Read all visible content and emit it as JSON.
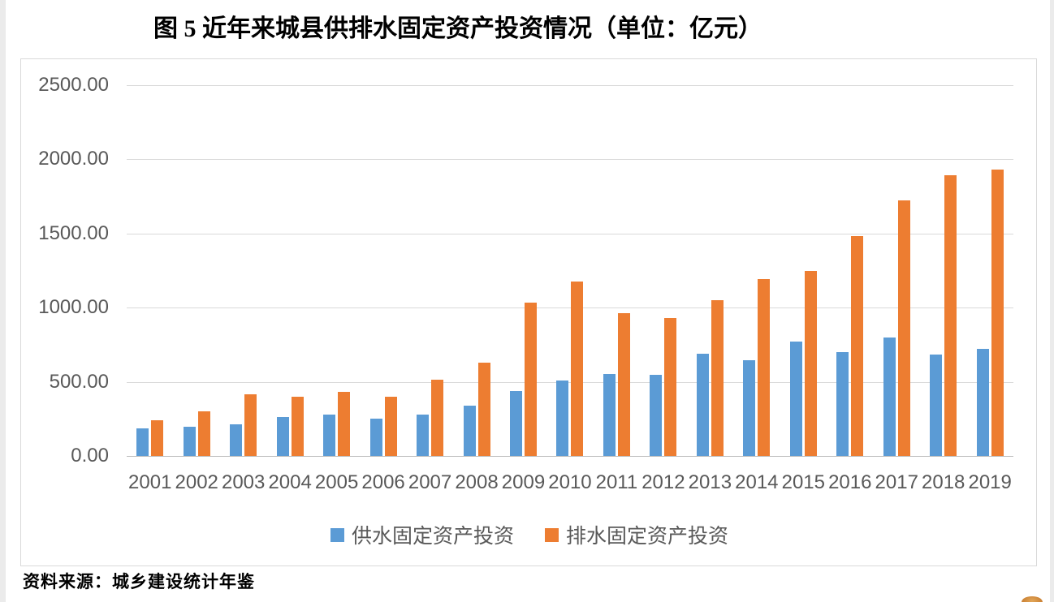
{
  "title": "图 5  近年来城县供排水固定资产投资情况（单位：亿元）",
  "source": "资料来源：城乡建设统计年鉴",
  "colors": {
    "water_supply": "#5B9BD5",
    "drainage": "#ED7D31",
    "gridline": "#D9D9D9",
    "axis_line": "#BFBFBF",
    "tick_text": "#595959",
    "chart_border": "#D9D9D9"
  },
  "chart_data": {
    "type": "bar",
    "title": "图 5  近年来城县供排水固定资产投资情况（单位：亿元）",
    "unit": "亿元",
    "categories": [
      "2001",
      "2002",
      "2003",
      "2004",
      "2005",
      "2006",
      "2007",
      "2008",
      "2009",
      "2010",
      "2011",
      "2012",
      "2013",
      "2014",
      "2015",
      "2016",
      "2017",
      "2018",
      "2019"
    ],
    "series": [
      {
        "key": "water-supply",
        "name": "供水固定资产投资",
        "color": "#5B9BD5",
        "values": [
          185,
          195,
          215,
          265,
          280,
          250,
          280,
          340,
          440,
          510,
          555,
          550,
          690,
          645,
          770,
          700,
          800,
          685,
          725
        ]
      },
      {
        "key": "drainage",
        "name": "排水固定资产投资",
        "color": "#ED7D31",
        "values": [
          240,
          300,
          415,
          400,
          430,
          400,
          515,
          630,
          1035,
          1175,
          965,
          930,
          1050,
          1195,
          1245,
          1485,
          1725,
          1895,
          1930
        ]
      }
    ],
    "ylim": [
      0,
      2500
    ],
    "ytick_step": 500,
    "ytick_labels": [
      "0.00",
      "500.00",
      "1000.00",
      "1500.00",
      "2000.00",
      "2500.00"
    ],
    "xlabel": "",
    "ylabel": "",
    "grid": true,
    "legend_position": "bottom"
  }
}
